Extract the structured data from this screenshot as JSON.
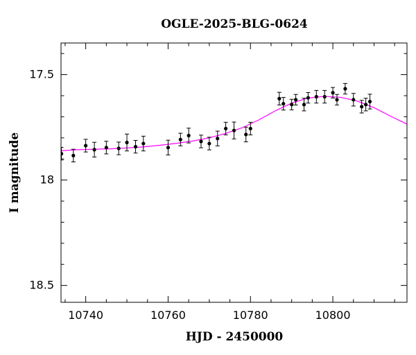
{
  "chart_data": {
    "type": "scatter",
    "title": "OGLE-2025-BLG-0624",
    "xlabel": "HJD - 2450000",
    "ylabel": "I magnitude",
    "xlim": [
      10734,
      10818
    ],
    "ylim": [
      18.58,
      17.35
    ],
    "y_inverted": true,
    "grid": false,
    "x_ticks": [
      10740,
      10760,
      10780,
      10800
    ],
    "x_tick_labels": [
      "10740",
      "10760",
      "10780",
      "10800"
    ],
    "y_ticks": [
      17.5,
      18,
      18.5
    ],
    "y_tick_labels": [
      "17.5",
      "18",
      "18.5"
    ],
    "colors": {
      "data": "#000000",
      "model": "#ff00ff"
    },
    "series": [
      {
        "role": "data",
        "points": [
          {
            "x": 10734.1,
            "y": 17.875,
            "err": 0.03
          },
          {
            "x": 10737.0,
            "y": 17.884,
            "err": 0.03
          },
          {
            "x": 10740.0,
            "y": 17.837,
            "err": 0.03
          },
          {
            "x": 10742.1,
            "y": 17.856,
            "err": 0.035
          },
          {
            "x": 10745.0,
            "y": 17.846,
            "err": 0.03
          },
          {
            "x": 10748.0,
            "y": 17.85,
            "err": 0.03
          },
          {
            "x": 10750.0,
            "y": 17.822,
            "err": 0.04
          },
          {
            "x": 10752.1,
            "y": 17.842,
            "err": 0.03
          },
          {
            "x": 10754.0,
            "y": 17.827,
            "err": 0.035
          },
          {
            "x": 10760.0,
            "y": 17.846,
            "err": 0.035
          },
          {
            "x": 10763.0,
            "y": 17.808,
            "err": 0.03
          },
          {
            "x": 10765.0,
            "y": 17.789,
            "err": 0.035
          },
          {
            "x": 10768.0,
            "y": 17.817,
            "err": 0.03
          },
          {
            "x": 10770.0,
            "y": 17.827,
            "err": 0.03
          },
          {
            "x": 10772.0,
            "y": 17.803,
            "err": 0.035
          },
          {
            "x": 10774.0,
            "y": 17.756,
            "err": 0.03
          },
          {
            "x": 10776.0,
            "y": 17.765,
            "err": 0.04
          },
          {
            "x": 10778.9,
            "y": 17.784,
            "err": 0.035
          },
          {
            "x": 10780.0,
            "y": 17.756,
            "err": 0.03
          },
          {
            "x": 10787.0,
            "y": 17.614,
            "err": 0.03
          },
          {
            "x": 10788.0,
            "y": 17.638,
            "err": 0.03
          },
          {
            "x": 10790.0,
            "y": 17.642,
            "err": 0.025
          },
          {
            "x": 10791.0,
            "y": 17.619,
            "err": 0.025
          },
          {
            "x": 10793.0,
            "y": 17.642,
            "err": 0.03
          },
          {
            "x": 10794.0,
            "y": 17.61,
            "err": 0.025
          },
          {
            "x": 10796.0,
            "y": 17.605,
            "err": 0.03
          },
          {
            "x": 10798.0,
            "y": 17.605,
            "err": 0.03
          },
          {
            "x": 10800.0,
            "y": 17.586,
            "err": 0.025
          },
          {
            "x": 10801.0,
            "y": 17.619,
            "err": 0.025
          },
          {
            "x": 10803.0,
            "y": 17.567,
            "err": 0.025
          },
          {
            "x": 10805.0,
            "y": 17.619,
            "err": 0.03
          },
          {
            "x": 10807.0,
            "y": 17.652,
            "err": 0.03
          },
          {
            "x": 10808.0,
            "y": 17.642,
            "err": 0.03
          },
          {
            "x": 10809.0,
            "y": 17.628,
            "err": 0.035
          }
        ]
      },
      {
        "role": "model",
        "x": [
          10734,
          10738,
          10742,
          10746,
          10750,
          10754,
          10758,
          10762,
          10766,
          10770,
          10774,
          10778,
          10782,
          10786,
          10790,
          10794,
          10798,
          10802,
          10806,
          10810,
          10814,
          10818
        ],
        "y": [
          17.861,
          17.856,
          17.854,
          17.852,
          17.848,
          17.843,
          17.835,
          17.826,
          17.815,
          17.8,
          17.779,
          17.752,
          17.715,
          17.672,
          17.635,
          17.611,
          17.603,
          17.608,
          17.626,
          17.657,
          17.697,
          17.735
        ]
      }
    ]
  }
}
